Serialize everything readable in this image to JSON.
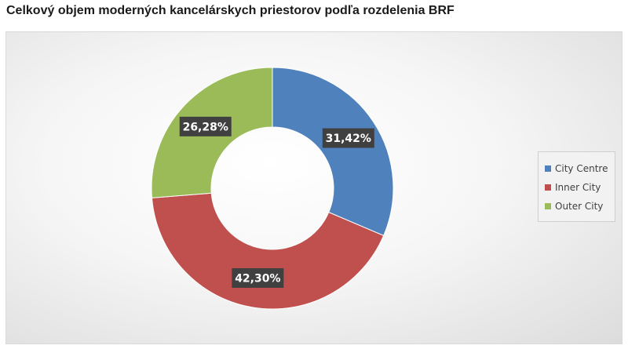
{
  "title": "Celkový objem moderných kancelárskych priestorov podľa rozdelenia BRF",
  "chart_data": {
    "type": "pie",
    "variant": "donut",
    "categories": [
      "City Centre",
      "Inner City",
      "Outer City"
    ],
    "values": [
      31.42,
      42.3,
      26.28
    ],
    "data_labels": [
      "31,42%",
      "42,30%",
      "26,28%"
    ],
    "colors": [
      "#4f81bd",
      "#c0504d",
      "#9bbb59"
    ],
    "title": "Celkový objem moderných kancelárskych priestorov podľa rozdelenia BRF",
    "legend_position": "right",
    "start_angle": "12 o'clock",
    "direction": "clockwise"
  }
}
